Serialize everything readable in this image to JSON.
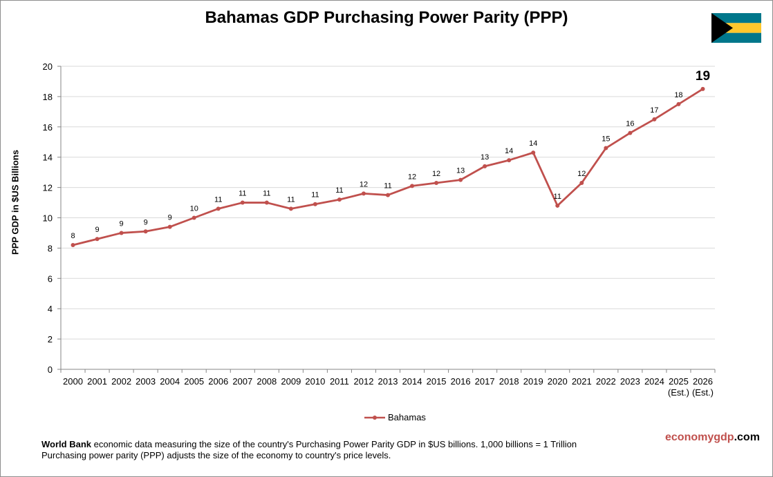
{
  "title": "Bahamas GDP Purchasing Power Parity (PPP)",
  "brand": {
    "part1": "economy",
    "part2": "gdp",
    "part3": ".com"
  },
  "footnote": {
    "source": "World Bank",
    "line1_rest": " economic data measuring the size of the country's Purchasing Power Parity GDP in $US billions. 1,000 billions = 1 Trillion",
    "line2": "Purchasing power parity (PPP) adjusts the size of the economy to country's price levels."
  },
  "flag": {
    "icon": "bahamas-flag-icon",
    "colors": {
      "aquamarine": "#00778b",
      "gold": "#ffc72c",
      "black": "#000000"
    }
  },
  "chart_data": {
    "type": "line",
    "title": "Bahamas GDP Purchasing Power Parity (PPP)",
    "ylabel": "PPP GDP in $US Billions",
    "xlabel": "",
    "ylim": [
      0,
      20
    ],
    "yticks": [
      0,
      2,
      4,
      6,
      8,
      10,
      12,
      14,
      16,
      18,
      20
    ],
    "grid": true,
    "legend_position": "bottom",
    "categories": [
      "2000",
      "2001",
      "2002",
      "2003",
      "2004",
      "2005",
      "2006",
      "2007",
      "2008",
      "2009",
      "2010",
      "2011",
      "2012",
      "2013",
      "2014",
      "2015",
      "2016",
      "2017",
      "2018",
      "2019",
      "2020",
      "2021",
      "2022",
      "2023",
      "2024",
      "2025",
      "2026"
    ],
    "category_sublabels": [
      "",
      "",
      "",
      "",
      "",
      "",
      "",
      "",
      "",
      "",
      "",
      "",
      "",
      "",
      "",
      "",
      "",
      "",
      "",
      "",
      "",
      "",
      "",
      "",
      "",
      "(Est.)",
      "(Est.)"
    ],
    "series": [
      {
        "name": "Bahamas",
        "color": "#c0504d",
        "values": [
          8.2,
          8.6,
          9.0,
          9.1,
          9.4,
          10.0,
          10.6,
          11.0,
          11.0,
          10.6,
          10.9,
          11.2,
          11.6,
          11.5,
          12.1,
          12.3,
          12.5,
          13.4,
          13.8,
          14.3,
          10.8,
          12.3,
          14.6,
          15.6,
          16.5,
          17.5,
          18.5
        ],
        "data_labels": [
          "8",
          "9",
          "9",
          "9",
          "9",
          "10",
          "11",
          "11",
          "11",
          "11",
          "11",
          "11",
          "12",
          "11",
          "12",
          "12",
          "13",
          "13",
          "14",
          "14",
          "11",
          "12",
          "15",
          "16",
          "17",
          "18",
          "19"
        ]
      }
    ]
  }
}
